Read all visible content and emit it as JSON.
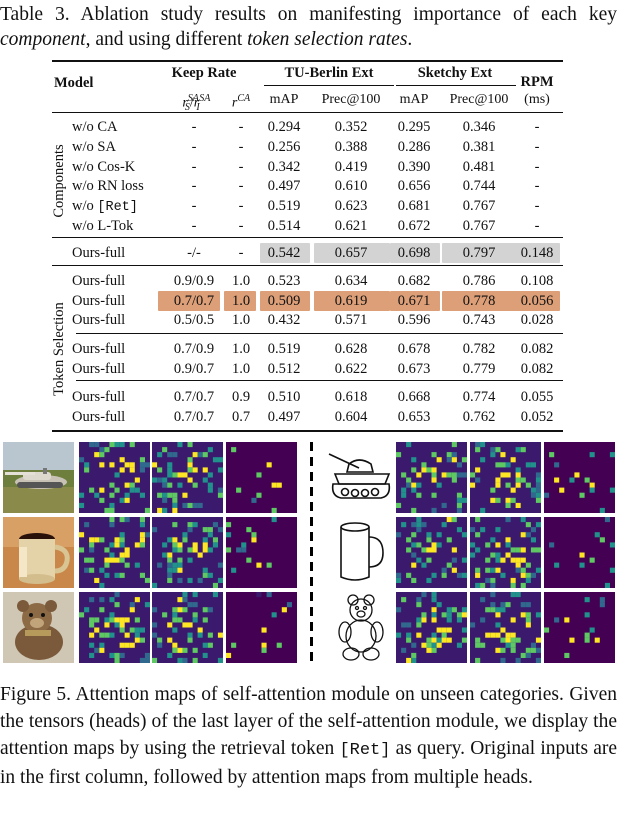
{
  "table_caption": {
    "prefix": "Table 3. Ablation study results on manifesting importance of each key ",
    "em1": "component",
    "mid": ", and using different ",
    "em2": "token selection rates",
    "suffix": "."
  },
  "table": {
    "headers": {
      "model": "Model",
      "keep_rate": "Keep Rate",
      "rs_main": "r",
      "rs_sup": "SA",
      "rs_sub": "S",
      "ri_main": "r",
      "ri_sup": "SA",
      "ri_sub": "I",
      "slash": "/",
      "rca_main": "r",
      "rca_sup": "CA",
      "tu_berlin": "TU-Berlin Ext",
      "sketchy": "Sketchy Ext",
      "rpm": "RPM",
      "ms": "(ms)",
      "map": "mAP",
      "prec": "Prec@100"
    },
    "group_labels": {
      "components": "Components",
      "token_selection": "Token Selection"
    },
    "component_rows": [
      {
        "model": "w/o CA",
        "keep": "-",
        "rca": "-",
        "tu_map": "0.294",
        "tu_prec": "0.352",
        "sk_map": "0.295",
        "sk_prec": "0.346",
        "rpm": "-"
      },
      {
        "model": "w/o SA",
        "keep": "-",
        "rca": "-",
        "tu_map": "0.256",
        "tu_prec": "0.388",
        "sk_map": "0.286",
        "sk_prec": "0.381",
        "rpm": "-"
      },
      {
        "model": "w/o Cos-K",
        "keep": "-",
        "rca": "-",
        "tu_map": "0.342",
        "tu_prec": "0.419",
        "sk_map": "0.390",
        "sk_prec": "0.481",
        "rpm": "-"
      },
      {
        "model": "w/o RN loss",
        "keep": "-",
        "rca": "-",
        "tu_map": "0.497",
        "tu_prec": "0.610",
        "sk_map": "0.656",
        "sk_prec": "0.744",
        "rpm": "-"
      },
      {
        "model_pre": "w/o ",
        "model_mono": "[Ret]",
        "keep": "-",
        "rca": "-",
        "tu_map": "0.519",
        "tu_prec": "0.623",
        "sk_map": "0.681",
        "sk_prec": "0.767",
        "rpm": "-"
      },
      {
        "model": "w/o L-Tok",
        "keep": "-",
        "rca": "-",
        "tu_map": "0.514",
        "tu_prec": "0.621",
        "sk_map": "0.672",
        "sk_prec": "0.767",
        "rpm": "-"
      }
    ],
    "full_row": {
      "model": "Ours-full",
      "keep": "-/-",
      "rca": "-",
      "tu_map": "0.542",
      "tu_prec": "0.657",
      "sk_map": "0.698",
      "sk_prec": "0.797",
      "rpm": "0.148"
    },
    "token_rows_a": [
      {
        "model": "Ours-full",
        "keep": "0.9/0.9",
        "rca": "1.0",
        "tu_map": "0.523",
        "tu_prec": "0.634",
        "sk_map": "0.682",
        "sk_prec": "0.786",
        "rpm": "0.108"
      },
      {
        "model": "Ours-full",
        "keep": "0.7/0.7",
        "rca": "1.0",
        "tu_map": "0.509",
        "tu_prec": "0.619",
        "sk_map": "0.671",
        "sk_prec": "0.778",
        "rpm": "0.056"
      },
      {
        "model": "Ours-full",
        "keep": "0.5/0.5",
        "rca": "1.0",
        "tu_map": "0.432",
        "tu_prec": "0.571",
        "sk_map": "0.596",
        "sk_prec": "0.743",
        "rpm": "0.028"
      }
    ],
    "token_rows_b": [
      {
        "model": "Ours-full",
        "keep": "0.7/0.9",
        "rca": "1.0",
        "tu_map": "0.519",
        "tu_prec": "0.628",
        "sk_map": "0.678",
        "sk_prec": "0.782",
        "rpm": "0.082"
      },
      {
        "model": "Ours-full",
        "keep": "0.9/0.7",
        "rca": "1.0",
        "tu_map": "0.512",
        "tu_prec": "0.622",
        "sk_map": "0.673",
        "sk_prec": "0.779",
        "rpm": "0.082"
      }
    ],
    "token_rows_c": [
      {
        "model": "Ours-full",
        "keep": "0.7/0.7",
        "rca": "0.9",
        "tu_map": "0.510",
        "tu_prec": "0.618",
        "sk_map": "0.668",
        "sk_prec": "0.774",
        "rpm": "0.055"
      },
      {
        "model": "Ours-full",
        "keep": "0.7/0.7",
        "rca": "0.7",
        "tu_map": "0.497",
        "tu_prec": "0.604",
        "sk_map": "0.653",
        "sk_prec": "0.762",
        "rpm": "0.052"
      }
    ],
    "colors": {
      "gray_highlight": "#d3d3d3",
      "orange_highlight": "#dc9f78"
    }
  },
  "figure": {
    "colors": {
      "viridis_dark": "#440154",
      "viridis_bg": "#3b1a6e",
      "viridis_mid": "#31688e",
      "viridis_teal": "#21918c",
      "viridis_green": "#5ec962",
      "viridis_yellow": "#fde725"
    },
    "rows": [
      "tank",
      "mug",
      "teddy-bear"
    ]
  },
  "figure_caption": {
    "text1": "Figure 5. Attention maps of self-attention module on unseen categories. Given the tensors (heads) of the last layer of the self-attention module, we display the attention maps by using the retrieval token ",
    "mono": "[Ret]",
    "text2": " as query. Original inputs are in the first column, followed by attention maps from multiple heads."
  }
}
